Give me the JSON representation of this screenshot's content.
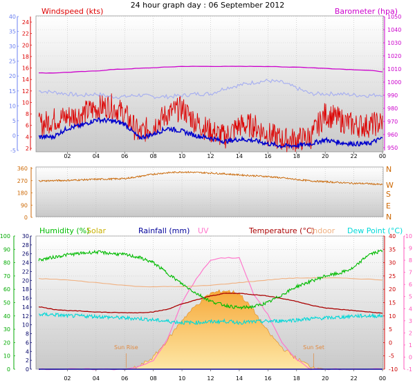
{
  "title": "24 hour graph day : 06 September 2012",
  "x_tick_labels": [
    "02",
    "04",
    "06",
    "08",
    "10",
    "12",
    "14",
    "16",
    "18",
    "20",
    "22",
    "00"
  ],
  "colors": {
    "windspeed": "#dd0000",
    "wind_avg": "#0000cc",
    "gust_band": "#a8b0f0",
    "barometer": "#cc00cc",
    "direction": "#c86400",
    "humidity": "#00bb00",
    "solar": "#f0a030",
    "rainfall": "#000099",
    "uv": "#ff77cc",
    "temperature": "#aa0000",
    "indoor": "#f0b080",
    "dewpoint": "#00d8d8"
  },
  "chart_data": [
    {
      "type": "line",
      "panel": "wind-barometer",
      "left_axis_1": {
        "label": "",
        "ticks": [
          "-5",
          "0",
          "5",
          "10",
          "15",
          "20",
          "25",
          "30",
          "35",
          "40"
        ]
      },
      "left_axis_2": {
        "label": "Windspeed (kts)",
        "ticks": [
          "2",
          "4",
          "6",
          "8",
          "10",
          "12",
          "14",
          "16",
          "18",
          "20",
          "22",
          "24"
        ]
      },
      "right_axis": {
        "label": "Barometer (hpa)",
        "ticks": [
          "950",
          "960",
          "970",
          "980",
          "990",
          "1000",
          "1010",
          "1020",
          "1030",
          "1040",
          "1050"
        ]
      },
      "x": [
        0,
        1,
        2,
        3,
        4,
        5,
        6,
        7,
        8,
        9,
        10,
        11,
        12,
        13,
        14,
        15,
        16,
        17,
        18,
        19,
        20,
        21,
        22,
        23,
        24
      ],
      "series": [
        {
          "name": "Windspeed (kts)",
          "axis": "windspeed",
          "values": [
            6,
            7,
            7.5,
            8,
            9,
            9.5,
            8,
            4.5,
            6,
            8,
            9,
            6.5,
            5,
            4,
            6,
            6,
            4.5,
            3.5,
            3.5,
            4,
            8,
            7,
            6,
            6,
            6.5
          ]
        },
        {
          "name": "Average wind",
          "axis": "windspeed",
          "values": [
            4,
            4,
            5.5,
            6,
            7,
            6.8,
            6.3,
            3.8,
            4.5,
            5.5,
            5,
            4.2,
            3.8,
            3.2,
            3.6,
            3.4,
            2.8,
            2.4,
            2.5,
            2.8,
            3.5,
            3,
            2.8,
            2.8,
            3.8
          ]
        },
        {
          "name": "Gust",
          "axis": "windspeed",
          "values": [
            12,
            11.8,
            11.5,
            11.2,
            11.5,
            11,
            11,
            11.3,
            11,
            11,
            11.2,
            11.5,
            11.5,
            12.5,
            13,
            13.5,
            13.8,
            13.5,
            12.5,
            11.5,
            11.5,
            11.5,
            11.3,
            11.2,
            11.4
          ]
        },
        {
          "name": "Barometer (hpa)",
          "axis": "barometer",
          "values": [
            1007,
            1007,
            1007.5,
            1008,
            1008.5,
            1009.5,
            1010,
            1010.5,
            1011,
            1011.5,
            1012,
            1012,
            1012,
            1012,
            1012,
            1012,
            1012,
            1011.5,
            1011.5,
            1011,
            1010.5,
            1010,
            1009.5,
            1009,
            1008
          ]
        }
      ]
    },
    {
      "type": "line",
      "panel": "wind-direction",
      "left_axis": {
        "label": "",
        "ticks": [
          "0",
          "90",
          "180",
          "270",
          "360"
        ]
      },
      "right_axis": {
        "label": "",
        "ticks": [
          "N",
          "W",
          "S",
          "E",
          "N"
        ]
      },
      "x": [
        0,
        1,
        2,
        3,
        4,
        5,
        6,
        7,
        8,
        9,
        10,
        11,
        12,
        13,
        14,
        15,
        16,
        17,
        18,
        19,
        20,
        21,
        22,
        23,
        24
      ],
      "series": [
        {
          "name": "Wind direction",
          "axis": "direction",
          "values": [
            268,
            270,
            272,
            276,
            280,
            282,
            285,
            300,
            318,
            328,
            334,
            330,
            326,
            320,
            312,
            306,
            300,
            290,
            278,
            268,
            262,
            256,
            250,
            248,
            240
          ]
        }
      ]
    },
    {
      "type": "area",
      "panel": "humidity-temperature",
      "legend": [
        "Humidity (%)",
        "Solar",
        "Rainfall (mm)",
        "UV",
        "Temperature (°C)",
        "Indoor",
        "Dew Point (°C)"
      ],
      "left_axis_1": {
        "label": "Humidity (%)",
        "ticks": [
          "0",
          "10",
          "20",
          "30",
          "40",
          "50",
          "60",
          "70",
          "80",
          "90",
          "100"
        ]
      },
      "left_axis_2": {
        "label": "Rainfall (mm)",
        "ticks": [
          "0",
          "2",
          "4",
          "6",
          "8",
          "10",
          "12",
          "14",
          "16",
          "18",
          "20",
          "22",
          "24",
          "26",
          "28",
          "30"
        ]
      },
      "right_axis_1": {
        "label": "Temperature (°C)",
        "ticks": [
          "-10",
          "-5",
          "0",
          "5",
          "10",
          "15",
          "20",
          "25",
          "30",
          "35",
          "40"
        ]
      },
      "right_axis_2": {
        "label": "UV",
        "ticks": [
          "-1",
          "0",
          "1",
          "2",
          "3",
          "4",
          "5",
          "6",
          "7",
          "8",
          "9",
          "10"
        ]
      },
      "annotations": [
        "Sun Rise",
        "Sun Set"
      ],
      "x": [
        0,
        1,
        2,
        3,
        4,
        5,
        6,
        7,
        8,
        9,
        10,
        11,
        12,
        13,
        14,
        15,
        16,
        17,
        18,
        19,
        20,
        21,
        22,
        23,
        24
      ],
      "series": [
        {
          "name": "Humidity (%)",
          "axis": "humidity",
          "values": [
            82,
            84,
            86,
            87,
            88,
            87,
            86,
            84,
            80,
            72,
            64,
            57,
            51,
            48,
            46,
            47,
            50,
            56,
            62,
            66,
            70,
            72,
            76,
            86,
            89
          ]
        },
        {
          "name": "Temperature (°C)",
          "axis": "temperature",
          "values": [
            13.5,
            12.5,
            12,
            11.8,
            11.5,
            11.3,
            11.2,
            11.2,
            11.5,
            12.5,
            14.5,
            16,
            17.5,
            18.5,
            18.5,
            18,
            17.5,
            16.5,
            15.5,
            14,
            13,
            12.5,
            12,
            11.5,
            11
          ]
        },
        {
          "name": "Indoor",
          "axis": "temperature",
          "values": [
            24,
            23.8,
            23.5,
            23,
            22.5,
            22,
            21.5,
            21,
            21,
            21,
            21,
            21.2,
            21.5,
            22,
            22.5,
            23,
            23.5,
            24,
            24.2,
            24.3,
            24.3,
            24.2,
            24,
            23.8,
            23.5
          ]
        },
        {
          "name": "Dew Point (°C)",
          "axis": "temperature",
          "values": [
            10.5,
            10.5,
            10,
            10,
            9.8,
            9.5,
            9.2,
            9,
            8.5,
            8,
            7.5,
            7.5,
            7.8,
            8,
            7.5,
            7.8,
            8,
            8.2,
            8.5,
            9,
            9.2,
            9.5,
            10,
            10,
            10
          ]
        },
        {
          "name": "Solar",
          "axis": "solar",
          "values": [
            0,
            0,
            0,
            0,
            0,
            0,
            0,
            2,
            9,
            22,
            37,
            48,
            57,
            59,
            57,
            44,
            28,
            16,
            8,
            2,
            0,
            0,
            0,
            0,
            0
          ]
        },
        {
          "name": "UV",
          "axis": "uv",
          "values": [
            -1,
            -1,
            -1,
            -1,
            -1,
            -1,
            -1,
            -0.8,
            -0.3,
            1.5,
            4.5,
            6.5,
            8,
            8.2,
            8.2,
            5.2,
            3.5,
            1.2,
            -0.2,
            -1,
            -1,
            -1,
            -1,
            -1,
            -1
          ]
        },
        {
          "name": "Rainfall (mm)",
          "axis": "rainfall",
          "values": [
            0,
            0,
            0,
            0,
            0,
            0,
            0,
            0,
            0,
            0,
            0,
            0,
            0,
            0,
            0,
            0,
            0,
            0,
            0,
            0,
            0,
            0,
            0,
            0,
            0
          ]
        }
      ]
    }
  ]
}
